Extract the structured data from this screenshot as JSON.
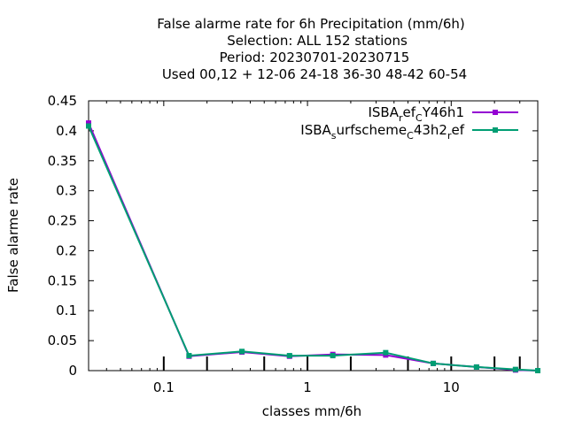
{
  "chart_data": {
    "type": "line",
    "title_lines": [
      "False alarme rate  for 6h Precipitation (mm/6h)",
      "Selection: ALL    152 stations",
      "Period: 20230701-20230715",
      "Used  00,12  + 12-06 24-18 36-30 48-42 60-54"
    ],
    "xlabel": "classes mm/6h",
    "ylabel": "False alarme rate",
    "x_scale": "log",
    "xlim": [
      0.03,
      40
    ],
    "ylim": [
      0,
      0.45
    ],
    "x_ticks": [
      {
        "value": 0.1,
        "label": "0.1"
      },
      {
        "value": 1,
        "label": "1"
      },
      {
        "value": 10,
        "label": "10"
      }
    ],
    "y_ticks": [
      {
        "value": 0,
        "label": "0"
      },
      {
        "value": 0.05,
        "label": "0.05"
      },
      {
        "value": 0.1,
        "label": "0.1"
      },
      {
        "value": 0.15,
        "label": "0.15"
      },
      {
        "value": 0.2,
        "label": "0.2"
      },
      {
        "value": 0.25,
        "label": "0.25"
      },
      {
        "value": 0.3,
        "label": "0.3"
      },
      {
        "value": 0.35,
        "label": "0.35"
      },
      {
        "value": 0.4,
        "label": "0.4"
      },
      {
        "value": 0.45,
        "label": "0.45"
      }
    ],
    "grid": false,
    "legend_position": "top-right",
    "class_markers": [
      0.1,
      0.2,
      0.5,
      1,
      2,
      5,
      10,
      20,
      30
    ],
    "series": [
      {
        "legend": {
          "base": "ISBA",
          "sub1": "r",
          "mid": "ef",
          "sub2": "C",
          "tail": "Y46h1"
        },
        "color": "#9400d3",
        "x": [
          0.03,
          0.15,
          0.35,
          0.75,
          1.5,
          3.5,
          7.5,
          15,
          28,
          40
        ],
        "values": [
          0.413,
          0.024,
          0.031,
          0.024,
          0.027,
          0.026,
          0.012,
          0.006,
          0.001,
          0.0
        ]
      },
      {
        "legend": {
          "base": "ISBA",
          "sub1": "s",
          "mid": "urfscheme",
          "sub2": "C",
          "tail": "43h2",
          "sub3": "r",
          "tail2": "ef"
        },
        "color": "#009e73",
        "x": [
          0.03,
          0.15,
          0.35,
          0.75,
          1.5,
          3.5,
          7.5,
          15,
          28,
          40
        ],
        "values": [
          0.408,
          0.025,
          0.032,
          0.025,
          0.025,
          0.03,
          0.012,
          0.006,
          0.002,
          0.0
        ]
      }
    ]
  }
}
